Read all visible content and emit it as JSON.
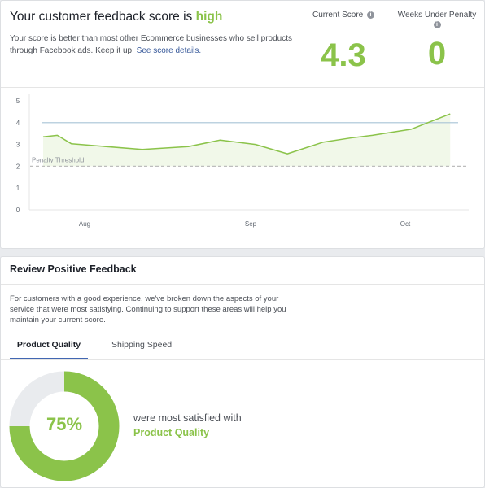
{
  "header": {
    "title_prefix": "Your customer feedback score is",
    "title_highlight": "high",
    "description": "Your score is better than most other Ecommerce businesses who sell products through Facebook ads. Keep it up!",
    "link_text": "See score details."
  },
  "metrics": {
    "current_score_label": "Current Score",
    "current_score_value": "4.3",
    "weeks_penalty_label": "Weeks Under Penalty",
    "weeks_penalty_value": "0"
  },
  "chart_data": {
    "type": "line",
    "y_ticks": [
      "0",
      "1",
      "2",
      "3",
      "4",
      "5"
    ],
    "ylim": [
      0,
      5
    ],
    "x_ticks": [
      "Aug",
      "Sep",
      "Oct"
    ],
    "grid": false,
    "threshold_label": "Penalty Threshold",
    "threshold_value": 2,
    "target_line_value": 4,
    "points": [
      {
        "x": 0,
        "y": 3.35
      },
      {
        "x": 0.04,
        "y": 3.42
      },
      {
        "x": 0.08,
        "y": 3.03
      },
      {
        "x": 0.28,
        "y": 2.77
      },
      {
        "x": 0.41,
        "y": 2.9
      },
      {
        "x": 0.5,
        "y": 3.2
      },
      {
        "x": 0.6,
        "y": 3.0
      },
      {
        "x": 0.69,
        "y": 2.57
      },
      {
        "x": 0.79,
        "y": 3.1
      },
      {
        "x": 0.87,
        "y": 3.3
      },
      {
        "x": 0.93,
        "y": 3.42
      },
      {
        "x": 1.04,
        "y": 3.7
      },
      {
        "x": 1.15,
        "y": 4.4
      }
    ],
    "colors": {
      "line": "#8bc34a",
      "fill": "#f1f8e9",
      "target": "#a7c4d6",
      "threshold": "#bdbdbd"
    }
  },
  "review": {
    "title": "Review Positive Feedback",
    "description": "For customers with a good experience, we've broken down the aspects of your service that were most satisfying. Continuing to support these areas will help you maintain your current score.",
    "tabs": [
      {
        "label": "Product Quality"
      },
      {
        "label": "Shipping Speed"
      }
    ],
    "percent_label": "75%",
    "percent_value": 75,
    "satisfied_text": "were most satisfied with",
    "category": "Product Quality"
  },
  "colors": {
    "accent_green": "#8bc34a",
    "tab_underline": "#4267b2",
    "donut_track": "#e9ebee"
  }
}
